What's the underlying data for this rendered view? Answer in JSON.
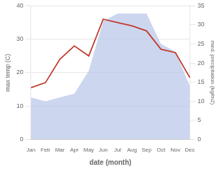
{
  "chart_data": {
    "type": "line",
    "categories": [
      "Jan",
      "Feb",
      "Mar",
      "Apr",
      "May",
      "Jun",
      "Jul",
      "Aug",
      "Sep",
      "Oct",
      "Nov",
      "Dec"
    ],
    "series": [
      {
        "type": "area",
        "color": "#b8c4e8",
        "axis": "y2",
        "values": [
          11,
          10,
          11,
          12,
          18,
          31,
          33,
          33,
          33,
          25,
          23,
          14
        ]
      },
      {
        "type": "line",
        "color": "#c0392b",
        "values": [
          15.5,
          17,
          24,
          28,
          25,
          36,
          35,
          34,
          32.5,
          27,
          26,
          18.5
        ]
      }
    ],
    "xlabel": "date (month)",
    "ylabel": "max temp (C)",
    "y2label": "med. precipitation (kg/m2)",
    "ylim": [
      0,
      40
    ],
    "yticks": [
      0,
      10,
      20,
      30,
      40
    ],
    "y2lim": [
      0,
      35
    ],
    "y2ticks": [
      0,
      5,
      10,
      15,
      20,
      25,
      30,
      35
    ],
    "grid": true
  }
}
